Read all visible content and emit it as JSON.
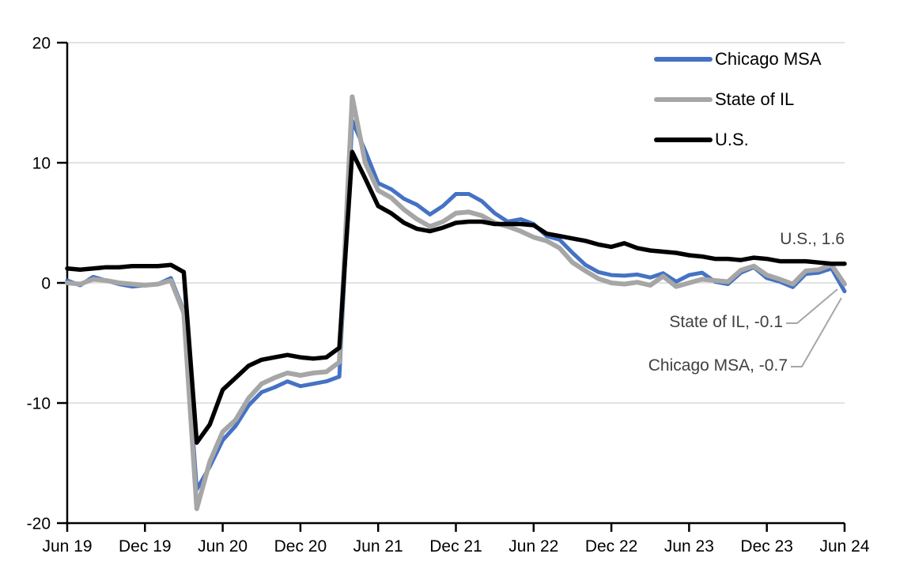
{
  "chart_data": {
    "type": "line",
    "title": "",
    "xlabel": "",
    "ylabel": "",
    "ylim": [
      -20,
      20
    ],
    "grid": true,
    "legend_position": "top-right-inside",
    "y_ticks": [
      20,
      10,
      0,
      -10,
      -20
    ],
    "y_tick_labels": [
      "20",
      "10",
      "0",
      "-10",
      "-20"
    ],
    "x_tick_labels": [
      "Jun 19",
      "Dec 19",
      "Jun 20",
      "Dec 20",
      "Jun 21",
      "Dec 21",
      "Jun 22",
      "Dec 22",
      "Jun 23",
      "Dec 23",
      "Jun 24"
    ],
    "x_start": "Jun 2019",
    "x_end": "Jun 2024",
    "x_frequency": "monthly",
    "series": [
      {
        "name": "Chicago MSA",
        "color": "#4472C4",
        "stroke_width": 5,
        "values": [
          0.2,
          -0.2,
          0.5,
          0.2,
          -0.1,
          -0.3,
          -0.2,
          -0.1,
          0.4,
          -2.3,
          -17.2,
          -15.3,
          -13.1,
          -11.9,
          -10.2,
          -9.1,
          -8.7,
          -8.2,
          -8.6,
          -8.4,
          -8.2,
          -7.8,
          13.5,
          11.0,
          8.3,
          7.8,
          7.0,
          6.5,
          5.7,
          6.4,
          7.4,
          7.4,
          6.8,
          5.8,
          5.1,
          5.3,
          4.9,
          3.9,
          3.6,
          2.5,
          1.5,
          0.9,
          0.65,
          0.6,
          0.7,
          0.45,
          0.8,
          0.1,
          0.65,
          0.85,
          0.1,
          -0.1,
          0.85,
          1.3,
          0.4,
          0.1,
          -0.35,
          0.75,
          0.85,
          1.2,
          -0.7
        ]
      },
      {
        "name": "State of IL",
        "color": "#A6A6A6",
        "stroke_width": 6,
        "values": [
          0.0,
          -0.1,
          0.3,
          0.2,
          0.0,
          -0.1,
          -0.2,
          -0.1,
          0.2,
          -2.5,
          -18.8,
          -14.9,
          -12.4,
          -11.4,
          -9.6,
          -8.4,
          -7.9,
          -7.5,
          -7.7,
          -7.5,
          -7.4,
          -6.6,
          15.5,
          10.0,
          7.7,
          7.1,
          6.1,
          5.3,
          4.7,
          5.1,
          5.8,
          5.9,
          5.6,
          5.0,
          4.7,
          4.3,
          3.8,
          3.5,
          2.9,
          1.7,
          1.0,
          0.35,
          0.0,
          -0.1,
          0.05,
          -0.2,
          0.55,
          -0.3,
          0.0,
          0.3,
          0.2,
          0.1,
          1.05,
          1.4,
          0.65,
          0.3,
          -0.1,
          1.0,
          1.1,
          1.5,
          -0.1
        ]
      },
      {
        "name": "U.S.",
        "color": "#000000",
        "stroke_width": 5.5,
        "values": [
          1.2,
          1.1,
          1.2,
          1.3,
          1.3,
          1.4,
          1.4,
          1.4,
          1.5,
          0.9,
          -13.3,
          -11.8,
          -8.9,
          -7.9,
          -6.9,
          -6.4,
          -6.2,
          -6.0,
          -6.2,
          -6.3,
          -6.2,
          -5.4,
          10.9,
          8.7,
          6.4,
          5.8,
          5.0,
          4.5,
          4.3,
          4.6,
          5.0,
          5.1,
          5.1,
          4.9,
          4.9,
          4.9,
          4.8,
          4.1,
          3.9,
          3.7,
          3.5,
          3.2,
          3.0,
          3.3,
          2.9,
          2.7,
          2.6,
          2.5,
          2.3,
          2.2,
          2.0,
          2.0,
          1.9,
          2.1,
          2.0,
          1.8,
          1.8,
          1.8,
          1.7,
          1.6,
          1.6
        ]
      }
    ],
    "annotations": [
      {
        "text": "U.S., 1.6",
        "series": "U.S.",
        "value": 1.6
      },
      {
        "text": "State of IL, -0.1",
        "series": "State of IL",
        "value": -0.1
      },
      {
        "text": "Chicago MSA, -0.7",
        "series": "Chicago MSA",
        "value": -0.7
      }
    ]
  },
  "colors": {
    "background": "#FFFFFF",
    "gridline": "#D9D9D9",
    "axis": "#000000",
    "annotation_text": "#404040",
    "leader_line": "#A6A6A6"
  }
}
